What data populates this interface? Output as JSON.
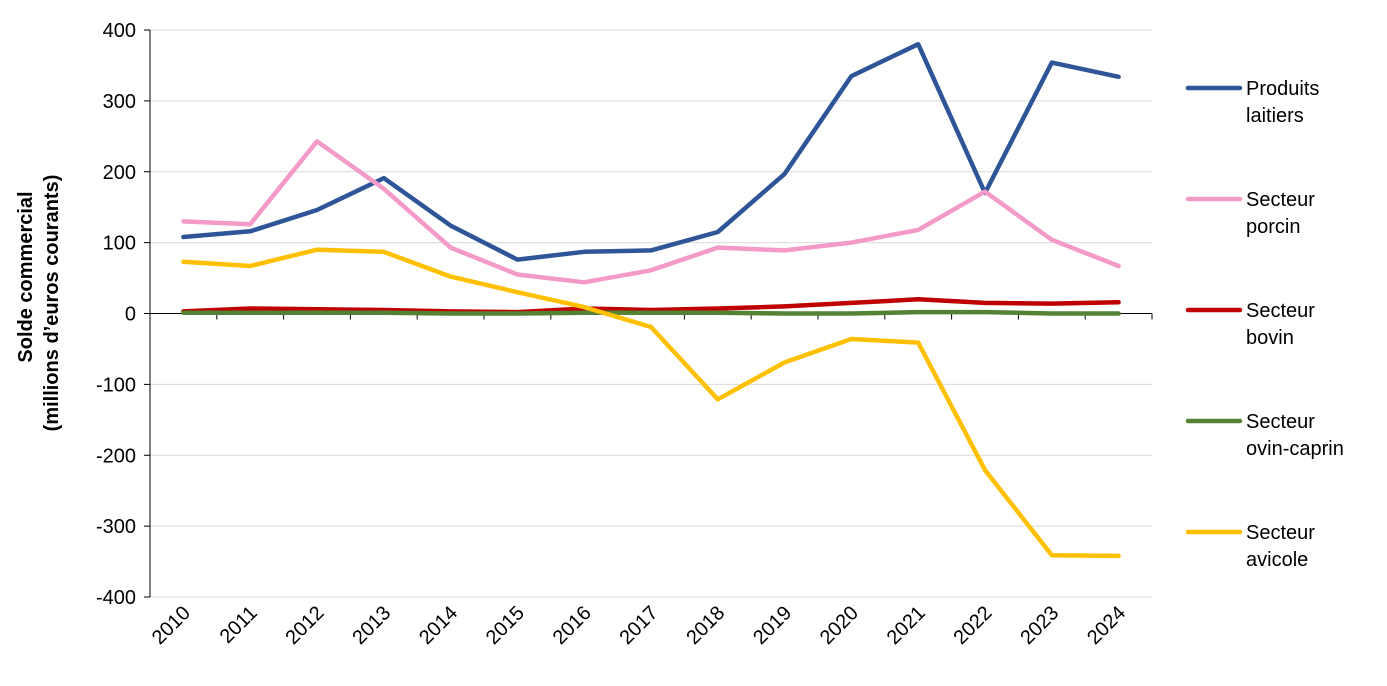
{
  "chart_data": {
    "type": "line",
    "title": "",
    "xlabel": "",
    "ylabel_line1": "Solde commercial",
    "ylabel_line2": "(millions d’euros courants)",
    "ylim": [
      -400,
      400
    ],
    "yticks": [
      400,
      300,
      200,
      100,
      0,
      -100,
      -200,
      -300,
      -400
    ],
    "yticks_labels": [
      "400",
      "300",
      "200",
      "100",
      "0",
      "-100",
      "-200",
      "-300",
      "-400"
    ],
    "categories": [
      "2010",
      "2011",
      "2012",
      "2013",
      "2014",
      "2015",
      "2016",
      "2017",
      "2018",
      "2019",
      "2020",
      "2021",
      "2022",
      "2023",
      "2024"
    ],
    "grid": true,
    "legend_position": "right",
    "series": [
      {
        "name": "Produits laitiers",
        "legend_line1": "Produits",
        "legend_line2": "laitiers",
        "color": "#2E5597",
        "values": [
          108,
          116,
          146,
          191,
          124,
          76,
          87,
          89,
          115,
          197,
          335,
          380,
          170,
          354,
          334
        ]
      },
      {
        "name": "Secteur porcin",
        "legend_line1": "Secteur",
        "legend_line2": "porcin",
        "color": "#F49AC9",
        "values": [
          130,
          126,
          243,
          176,
          93,
          55,
          44,
          61,
          93,
          89,
          100,
          118,
          172,
          104,
          67
        ]
      },
      {
        "name": "Secteur bovin",
        "legend_line1": "Secteur",
        "legend_line2": "bovin",
        "color": "#C00000",
        "values": [
          3,
          7,
          6,
          5,
          3,
          2,
          7,
          5,
          7,
          10,
          15,
          20,
          15,
          14,
          16
        ]
      },
      {
        "name": "Secteur ovin-caprin",
        "legend_line1": "Secteur",
        "legend_line2": "ovin-caprin",
        "color": "#548235",
        "values": [
          1,
          1,
          1,
          1,
          0,
          0,
          1,
          1,
          1,
          0,
          0,
          2,
          2,
          0,
          0
        ]
      },
      {
        "name": "Secteur avicole",
        "legend_line1": "Secteur",
        "legend_line2": "avicole",
        "color": "#FFC000",
        "values": [
          73,
          67,
          90,
          87,
          52,
          30,
          9,
          -19,
          -121,
          -69,
          -36,
          -41,
          -221,
          -341,
          -342
        ]
      }
    ]
  }
}
